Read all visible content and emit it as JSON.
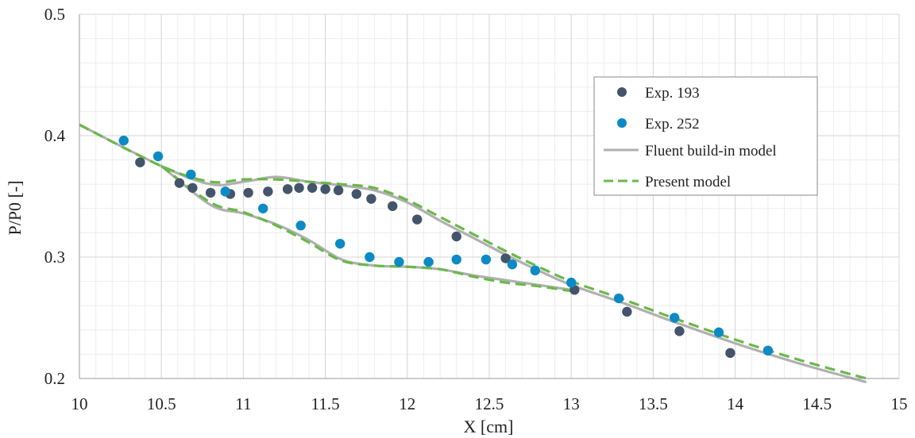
{
  "chart_data": {
    "type": "scatter",
    "xlabel": "X [cm]",
    "ylabel": "P/P0 [-]",
    "xlim": [
      10,
      15
    ],
    "ylim": [
      0.2,
      0.5
    ],
    "x_ticks": [
      10,
      10.5,
      11,
      11.5,
      12,
      12.5,
      13,
      13.5,
      14,
      14.5,
      15
    ],
    "x_tick_labels": [
      "10",
      "10.5",
      "11",
      "11.5",
      "12",
      "12.5",
      "13",
      "13.5",
      "14",
      "14.5",
      "15"
    ],
    "y_ticks": [
      0.2,
      0.3,
      0.4,
      0.5
    ],
    "y_tick_labels": [
      "0.2",
      "0.3",
      "0.4",
      "0.5"
    ],
    "grid": true,
    "legend_position": "top-right",
    "series": [
      {
        "name": "Exp. 193",
        "kind": "points",
        "color": "#44546a",
        "x": [
          10.37,
          10.61,
          10.69,
          10.8,
          10.92,
          11.03,
          11.15,
          11.27,
          11.34,
          11.42,
          11.5,
          11.58,
          11.69,
          11.78,
          11.91,
          12.06,
          12.3,
          12.6,
          13.02,
          13.34,
          13.66,
          13.97
        ],
        "y": [
          0.378,
          0.361,
          0.357,
          0.353,
          0.352,
          0.353,
          0.354,
          0.356,
          0.357,
          0.357,
          0.356,
          0.355,
          0.352,
          0.348,
          0.342,
          0.331,
          0.317,
          0.299,
          0.273,
          0.255,
          0.239,
          0.221
        ]
      },
      {
        "name": "Exp. 252",
        "kind": "points",
        "color": "#0b8ac4",
        "x": [
          10.27,
          10.48,
          10.68,
          10.89,
          11.12,
          11.35,
          11.59,
          11.77,
          11.95,
          12.13,
          12.3,
          12.48,
          12.64,
          12.78,
          13.0,
          13.29,
          13.63,
          13.9,
          14.2
        ],
        "y": [
          0.396,
          0.383,
          0.368,
          0.354,
          0.34,
          0.326,
          0.311,
          0.3,
          0.296,
          0.296,
          0.298,
          0.298,
          0.294,
          0.289,
          0.279,
          0.266,
          0.25,
          0.238,
          0.223
        ]
      },
      {
        "name": "Fluent build-in model",
        "kind": "line",
        "style": "solid",
        "color": "#b0b0b0",
        "x": [
          10.0,
          10.5,
          10.8,
          11.0,
          11.2,
          11.4,
          11.6,
          11.8,
          12.0,
          12.2,
          12.4,
          12.6,
          12.8,
          13.0,
          13.3,
          13.6,
          14.0,
          14.4,
          14.8
        ],
        "y": [
          0.409,
          0.375,
          0.36,
          0.362,
          0.366,
          0.362,
          0.359,
          0.355,
          0.345,
          0.33,
          0.316,
          0.302,
          0.289,
          0.277,
          0.263,
          0.248,
          0.229,
          0.212,
          0.197
        ],
        "x2": [
          10.5,
          10.8,
          11.0,
          11.2,
          11.4,
          11.6,
          11.8,
          12.0,
          12.2,
          12.4,
          12.6,
          12.8,
          13.0
        ],
        "y2": [
          0.375,
          0.343,
          0.336,
          0.327,
          0.314,
          0.298,
          0.293,
          0.292,
          0.29,
          0.285,
          0.281,
          0.277,
          0.273
        ]
      },
      {
        "name": "Present model",
        "kind": "line",
        "style": "dashed",
        "color": "#6ab84a",
        "x": [
          10.0,
          10.5,
          10.8,
          11.0,
          11.2,
          11.4,
          11.6,
          11.8,
          12.0,
          12.2,
          12.4,
          12.6,
          12.8,
          13.0,
          13.3,
          13.6,
          14.0,
          14.4,
          14.8
        ],
        "y": [
          0.409,
          0.375,
          0.362,
          0.364,
          0.364,
          0.362,
          0.36,
          0.357,
          0.347,
          0.333,
          0.319,
          0.305,
          0.292,
          0.28,
          0.266,
          0.251,
          0.232,
          0.215,
          0.2
        ],
        "x2": [
          10.5,
          10.8,
          11.0,
          11.2,
          11.4,
          11.6,
          11.8,
          12.0,
          12.2,
          12.4,
          12.6,
          12.8,
          13.0
        ],
        "y2": [
          0.375,
          0.345,
          0.337,
          0.326,
          0.312,
          0.297,
          0.293,
          0.292,
          0.29,
          0.284,
          0.279,
          0.276,
          0.272
        ]
      }
    ]
  }
}
